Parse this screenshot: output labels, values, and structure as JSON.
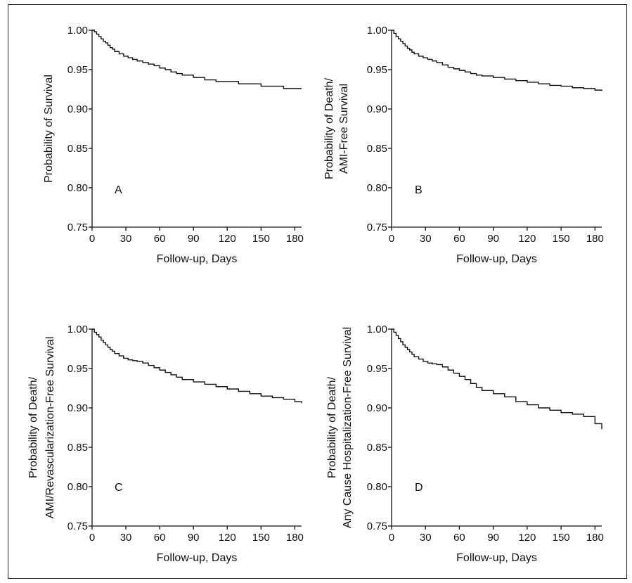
{
  "chart_data": [
    {
      "type": "line",
      "step": true,
      "panel_label": "A",
      "xlabel": "Follow-up, Days",
      "ylabel_lines": [
        "Probability of Survival"
      ],
      "xlim": [
        0,
        186
      ],
      "ylim": [
        0.75,
        1.0
      ],
      "xticks": [
        0,
        30,
        60,
        90,
        120,
        150,
        180
      ],
      "yticks": [
        0.75,
        0.8,
        0.85,
        0.9,
        0.95,
        1.0
      ],
      "x": [
        0,
        2,
        4,
        6,
        8,
        10,
        12,
        14,
        16,
        18,
        20,
        24,
        28,
        32,
        36,
        40,
        45,
        50,
        55,
        60,
        65,
        70,
        75,
        80,
        90,
        100,
        110,
        130,
        150,
        170,
        186
      ],
      "y": [
        1.0,
        0.998,
        0.995,
        0.992,
        0.989,
        0.986,
        0.984,
        0.981,
        0.978,
        0.976,
        0.973,
        0.97,
        0.967,
        0.965,
        0.963,
        0.961,
        0.959,
        0.957,
        0.955,
        0.952,
        0.95,
        0.947,
        0.945,
        0.943,
        0.94,
        0.937,
        0.935,
        0.932,
        0.929,
        0.926,
        0.926
      ]
    },
    {
      "type": "line",
      "step": true,
      "panel_label": "B",
      "xlabel": "Follow-up, Days",
      "ylabel_lines": [
        "Probability of Death/",
        "AMI-Free Survival"
      ],
      "xlim": [
        0,
        186
      ],
      "ylim": [
        0.75,
        1.0
      ],
      "xticks": [
        0,
        30,
        60,
        90,
        120,
        150,
        180
      ],
      "yticks": [
        0.75,
        0.8,
        0.85,
        0.9,
        0.95,
        1.0
      ],
      "x": [
        0,
        2,
        4,
        6,
        8,
        10,
        12,
        14,
        16,
        18,
        20,
        24,
        28,
        32,
        36,
        40,
        45,
        50,
        55,
        60,
        65,
        70,
        75,
        80,
        90,
        100,
        110,
        120,
        130,
        140,
        150,
        160,
        170,
        180,
        186
      ],
      "y": [
        1.0,
        0.996,
        0.992,
        0.989,
        0.986,
        0.983,
        0.98,
        0.977,
        0.975,
        0.972,
        0.97,
        0.967,
        0.965,
        0.963,
        0.961,
        0.959,
        0.956,
        0.953,
        0.951,
        0.949,
        0.947,
        0.945,
        0.943,
        0.942,
        0.94,
        0.938,
        0.936,
        0.934,
        0.932,
        0.93,
        0.929,
        0.927,
        0.926,
        0.924,
        0.923
      ]
    },
    {
      "type": "line",
      "step": true,
      "panel_label": "C",
      "xlabel": "Follow-up, Days",
      "ylabel_lines": [
        "Probability of Death/",
        "AMI/Revascularization-Free Survival"
      ],
      "xlim": [
        0,
        186
      ],
      "ylim": [
        0.75,
        1.0
      ],
      "xticks": [
        0,
        30,
        60,
        90,
        120,
        150,
        180
      ],
      "yticks": [
        0.75,
        0.8,
        0.85,
        0.9,
        0.95,
        1.0
      ],
      "x": [
        0,
        2,
        4,
        6,
        8,
        10,
        12,
        14,
        16,
        18,
        20,
        24,
        28,
        32,
        36,
        40,
        45,
        50,
        55,
        60,
        65,
        70,
        75,
        80,
        90,
        100,
        110,
        120,
        130,
        140,
        150,
        160,
        170,
        180,
        186
      ],
      "y": [
        1.0,
        0.996,
        0.993,
        0.99,
        0.986,
        0.983,
        0.98,
        0.977,
        0.974,
        0.972,
        0.969,
        0.966,
        0.963,
        0.961,
        0.96,
        0.959,
        0.957,
        0.954,
        0.951,
        0.948,
        0.945,
        0.942,
        0.939,
        0.936,
        0.933,
        0.93,
        0.927,
        0.924,
        0.921,
        0.918,
        0.915,
        0.913,
        0.911,
        0.908,
        0.906
      ]
    },
    {
      "type": "line",
      "step": true,
      "panel_label": "D",
      "xlabel": "Follow-up, Days",
      "ylabel_lines": [
        "Probability of Death/",
        "Any Cause Hospitalization-Free Survival"
      ],
      "xlim": [
        0,
        186
      ],
      "ylim": [
        0.75,
        1.0
      ],
      "xticks": [
        0,
        30,
        60,
        90,
        120,
        150,
        180
      ],
      "yticks": [
        0.75,
        0.8,
        0.85,
        0.9,
        0.95,
        1.0
      ],
      "x": [
        0,
        2,
        4,
        6,
        8,
        10,
        12,
        14,
        16,
        18,
        20,
        24,
        28,
        32,
        36,
        40,
        45,
        50,
        55,
        60,
        65,
        70,
        75,
        80,
        90,
        100,
        110,
        120,
        130,
        140,
        150,
        160,
        170,
        180,
        186
      ],
      "y": [
        1.0,
        0.996,
        0.992,
        0.988,
        0.984,
        0.98,
        0.977,
        0.974,
        0.971,
        0.968,
        0.965,
        0.962,
        0.959,
        0.957,
        0.956,
        0.955,
        0.952,
        0.948,
        0.944,
        0.94,
        0.936,
        0.931,
        0.926,
        0.922,
        0.918,
        0.914,
        0.908,
        0.904,
        0.9,
        0.897,
        0.894,
        0.892,
        0.889,
        0.88,
        0.873
      ]
    }
  ]
}
